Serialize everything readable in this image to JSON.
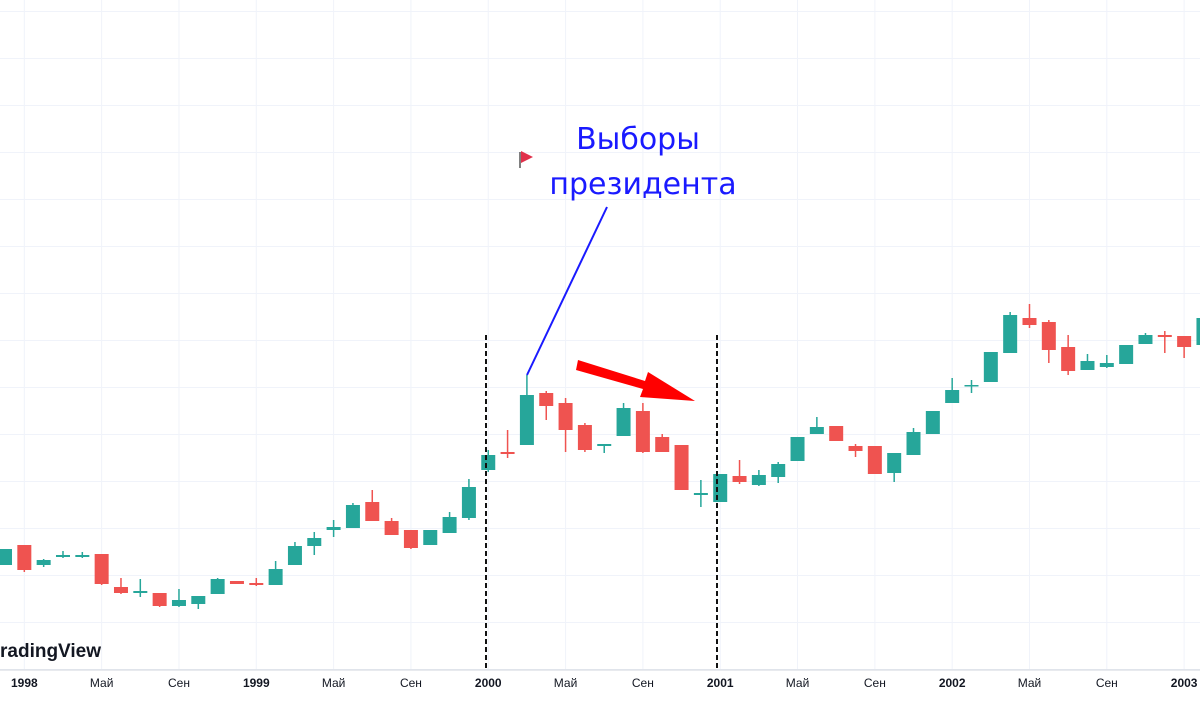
{
  "chart_data": {
    "type": "candlestick",
    "watermark": "radingView",
    "annotation": [
      "Выборы",
      "президента"
    ],
    "categories": [
      null,
      "1998",
      null,
      null,
      null,
      "Май",
      null,
      null,
      null,
      "Сен",
      null,
      null,
      null,
      "1999",
      null,
      null,
      null,
      "Май",
      null,
      null,
      null,
      "Сен",
      null,
      null,
      null,
      "2000",
      null,
      null,
      null,
      "Май",
      null,
      null,
      null,
      "Сен",
      null,
      null,
      null,
      "2001",
      null,
      null,
      null,
      "Май",
      null,
      null,
      null,
      "Сен",
      null,
      null,
      null,
      "2002",
      null,
      null,
      null,
      "Май",
      null,
      null,
      null,
      "Сен",
      null,
      null,
      null,
      "2003",
      null
    ],
    "open": [
      105,
      125,
      105,
      113,
      113,
      116,
      83,
      77,
      77,
      64,
      66,
      76,
      89,
      87,
      85,
      105,
      124,
      140,
      142,
      168,
      149,
      140,
      125,
      137,
      152,
      200,
      218,
      225,
      277,
      267,
      245,
      224,
      234,
      259,
      233,
      225,
      175,
      168,
      194,
      185,
      193,
      209,
      236,
      244,
      224,
      224,
      197,
      215,
      236,
      267,
      284,
      288,
      317,
      352,
      348,
      323,
      300,
      303,
      306,
      326,
      335,
      334,
      325
    ],
    "high": [
      121,
      125,
      111,
      119,
      118,
      116,
      92,
      91,
      77,
      81,
      74,
      92,
      89,
      92,
      109,
      128,
      138,
      150,
      167,
      180,
      152,
      140,
      140,
      158,
      191,
      220,
      240,
      295,
      279,
      272,
      247,
      226,
      267,
      267,
      236,
      225,
      190,
      196,
      210,
      200,
      208,
      233,
      253,
      244,
      226,
      224,
      217,
      242,
      259,
      292,
      290,
      318,
      358,
      366,
      350,
      335,
      316,
      315,
      325,
      337,
      339,
      334,
      352
    ],
    "low": [
      105,
      98,
      103,
      112,
      112,
      85,
      76,
      73,
      63,
      63,
      61,
      76,
      86,
      84,
      85,
      105,
      115,
      133,
      142,
      149,
      135,
      121,
      125,
      137,
      150,
      198,
      212,
      225,
      250,
      218,
      218,
      217,
      234,
      217,
      218,
      180,
      163,
      168,
      186,
      184,
      187,
      209,
      236,
      229,
      213,
      196,
      188,
      215,
      236,
      267,
      277,
      288,
      317,
      342,
      307,
      295,
      300,
      302,
      306,
      326,
      317,
      312,
      325
    ],
    "close": [
      121,
      100,
      110,
      115,
      115,
      86,
      77,
      79,
      64,
      70,
      74,
      91,
      86,
      85,
      101,
      124,
      132,
      143,
      165,
      149,
      135,
      122,
      140,
      153,
      183,
      215,
      216,
      275,
      264,
      240,
      220,
      226,
      262,
      218,
      218,
      180,
      177,
      196,
      188,
      195,
      206,
      233,
      243,
      229,
      219,
      196,
      217,
      238,
      259,
      280,
      285,
      318,
      355,
      345,
      320,
      299,
      309,
      307,
      325,
      335,
      333,
      323,
      352
    ],
    "up_color": "#26a69a",
    "down_color": "#ef5350",
    "ylim": [
      0,
      670
    ]
  }
}
